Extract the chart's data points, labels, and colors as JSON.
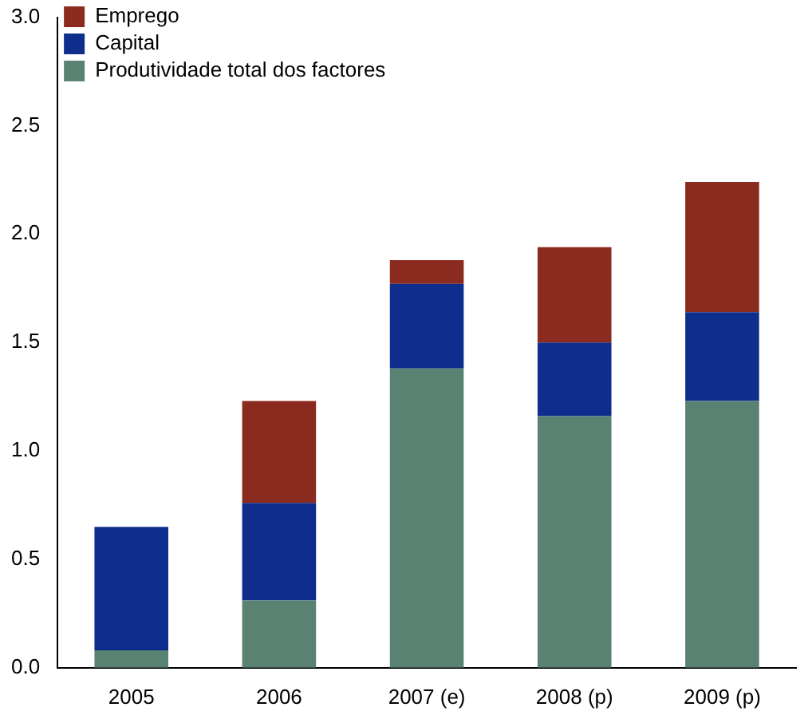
{
  "chart_data": {
    "type": "bar",
    "stacked": true,
    "categories": [
      "2005",
      "2006",
      "2007 (e)",
      "2008 (p)",
      "2009 (p)"
    ],
    "series": [
      {
        "name": "Produtividade total dos factores",
        "color": "#5a8272",
        "values": [
          0.08,
          0.31,
          1.38,
          1.16,
          1.23
        ]
      },
      {
        "name": "Capital",
        "color": "#0f2d8c",
        "values": [
          0.57,
          0.45,
          0.39,
          0.34,
          0.41
        ]
      },
      {
        "name": "Emprego",
        "color": "#8b2a1e",
        "values": [
          null,
          0.47,
          0.11,
          0.44,
          0.6
        ]
      }
    ],
    "ylim": [
      0,
      3
    ],
    "yticks": [
      {
        "value": 0,
        "label": "0.0"
      },
      {
        "value": 0.5,
        "label": "0.5"
      },
      {
        "value": 1,
        "label": "1.0"
      },
      {
        "value": 1.5,
        "label": "1.5"
      },
      {
        "value": 2,
        "label": "2.0"
      },
      {
        "value": 2.5,
        "label": "2.5"
      },
      {
        "value": 3,
        "label": "3.0"
      }
    ],
    "grid": false,
    "legend": "top left"
  }
}
